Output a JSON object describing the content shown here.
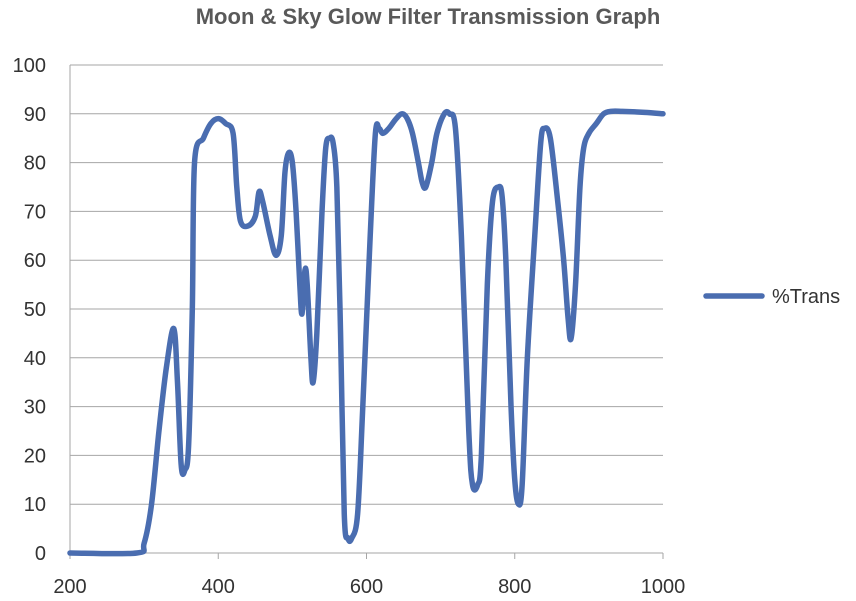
{
  "chart_data": {
    "type": "line",
    "title": "Moon & Sky Glow Filter Transmission Graph",
    "xlabel": "",
    "ylabel": "",
    "xlim": [
      200,
      1000
    ],
    "ylim": [
      0,
      100
    ],
    "x_ticks": [
      "200",
      "400",
      "600",
      "800",
      "1000"
    ],
    "y_ticks": [
      "0",
      "10",
      "20",
      "30",
      "40",
      "50",
      "60",
      "70",
      "80",
      "90",
      "100"
    ],
    "grid": true,
    "legend_position": "right",
    "series": [
      {
        "name": "%Trans",
        "color": "#4a6db0",
        "points": [
          [
            200,
            0
          ],
          [
            290,
            0
          ],
          [
            300,
            2
          ],
          [
            310,
            10
          ],
          [
            320,
            25
          ],
          [
            330,
            38
          ],
          [
            340,
            46
          ],
          [
            345,
            35
          ],
          [
            350,
            18
          ],
          [
            355,
            17
          ],
          [
            360,
            22
          ],
          [
            365,
            50
          ],
          [
            368,
            80
          ],
          [
            380,
            85
          ],
          [
            390,
            88
          ],
          [
            400,
            89
          ],
          [
            410,
            88
          ],
          [
            420,
            86
          ],
          [
            425,
            75
          ],
          [
            430,
            68
          ],
          [
            440,
            67
          ],
          [
            450,
            69
          ],
          [
            455,
            74
          ],
          [
            460,
            72
          ],
          [
            470,
            65
          ],
          [
            478,
            61
          ],
          [
            485,
            65
          ],
          [
            490,
            78
          ],
          [
            495,
            82
          ],
          [
            500,
            80
          ],
          [
            505,
            70
          ],
          [
            510,
            55
          ],
          [
            513,
            49
          ],
          [
            517,
            58
          ],
          [
            520,
            55
          ],
          [
            525,
            40
          ],
          [
            528,
            35
          ],
          [
            533,
            45
          ],
          [
            540,
            70
          ],
          [
            545,
            83
          ],
          [
            550,
            85
          ],
          [
            555,
            84
          ],
          [
            560,
            75
          ],
          [
            565,
            45
          ],
          [
            570,
            8
          ],
          [
            575,
            3
          ],
          [
            580,
            3
          ],
          [
            588,
            8
          ],
          [
            595,
            30
          ],
          [
            605,
            65
          ],
          [
            612,
            86
          ],
          [
            617,
            87
          ],
          [
            622,
            86
          ],
          [
            630,
            87
          ],
          [
            640,
            89
          ],
          [
            648,
            90
          ],
          [
            655,
            89
          ],
          [
            662,
            86
          ],
          [
            670,
            80
          ],
          [
            675,
            76
          ],
          [
            680,
            75
          ],
          [
            688,
            80
          ],
          [
            695,
            86
          ],
          [
            705,
            90
          ],
          [
            712,
            90
          ],
          [
            720,
            87
          ],
          [
            728,
            65
          ],
          [
            738,
            25
          ],
          [
            743,
            14
          ],
          [
            750,
            14
          ],
          [
            755,
            20
          ],
          [
            763,
            55
          ],
          [
            770,
            72
          ],
          [
            778,
            75
          ],
          [
            783,
            73
          ],
          [
            788,
            60
          ],
          [
            795,
            30
          ],
          [
            800,
            15
          ],
          [
            805,
            10
          ],
          [
            810,
            14
          ],
          [
            817,
            40
          ],
          [
            827,
            65
          ],
          [
            835,
            84
          ],
          [
            840,
            87
          ],
          [
            848,
            85
          ],
          [
            858,
            72
          ],
          [
            866,
            60
          ],
          [
            872,
            48
          ],
          [
            876,
            44
          ],
          [
            882,
            55
          ],
          [
            888,
            75
          ],
          [
            893,
            83
          ],
          [
            900,
            86
          ],
          [
            910,
            88
          ],
          [
            920,
            90
          ],
          [
            930,
            90.5
          ],
          [
            945,
            90.5
          ],
          [
            975,
            90.3
          ],
          [
            1000,
            90
          ]
        ]
      }
    ]
  }
}
